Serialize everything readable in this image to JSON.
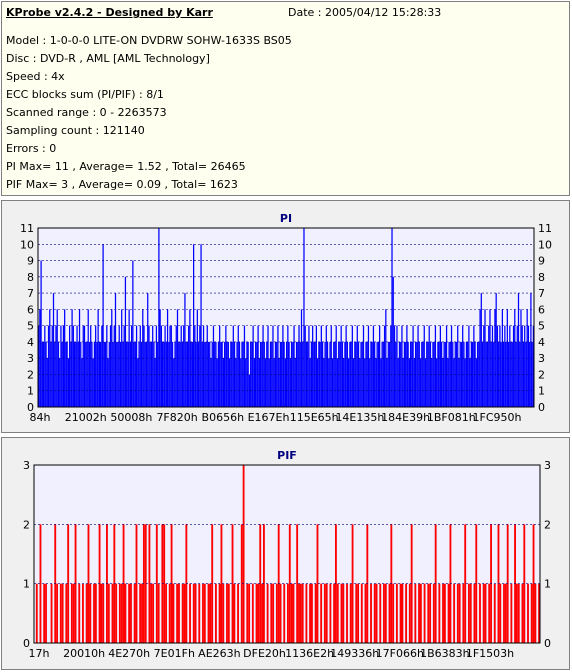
{
  "header": {
    "title": "KProbe v2.4.2 - Designed by Karr",
    "date": "Date : 2005/04/12 15:28:33"
  },
  "info_lines": [
    "Model : 1-0-0-0 LITE-ON DVDRW SOHW-1633S BS05",
    "Disc : DVD-R , AML [AML Technology]",
    "Speed : 4x",
    "ECC blocks sum (PI/PIF) : 8/1",
    "Scanned range : 0 - 2263573",
    "Sampling count : 121140",
    "Errors : 0",
    "PI Max= 11 , Average= 1.52 , Total= 26465",
    "PIF Max= 3 , Average= 0.09 , Total= 1623"
  ],
  "colors": {
    "pi": "#0000ff",
    "pif": "#ff0000",
    "plot_bg": "#f0f0ff",
    "grid": "#000080"
  },
  "chart_data": [
    {
      "type": "bar",
      "title": "PI",
      "ylim": [
        0,
        11
      ],
      "yticks": [
        0,
        1,
        2,
        3,
        4,
        5,
        6,
        7,
        8,
        9,
        10,
        11
      ],
      "x_tick_labels": [
        "84h",
        "21002h",
        "50008h",
        "7F820h",
        "B0656h",
        "E167Eh",
        "115E65h",
        "14E135h",
        "184E39h",
        "1BF081h",
        "1FC950h"
      ],
      "grid": true,
      "series": [
        {
          "values": [
            5,
            6,
            9,
            4,
            4,
            5,
            4,
            3,
            5,
            6,
            4,
            5,
            7,
            4,
            5,
            6,
            4,
            3,
            5,
            4,
            5,
            6,
            4,
            4,
            3,
            5,
            4,
            6,
            5,
            4,
            4,
            5,
            4,
            6,
            4,
            3,
            5,
            5,
            4,
            4,
            6,
            4,
            5,
            4,
            3,
            4,
            5,
            4,
            6,
            4,
            4,
            5,
            10,
            4,
            4,
            5,
            3,
            4,
            5,
            6,
            4,
            5,
            7,
            4,
            4,
            5,
            4,
            6,
            4,
            5,
            8,
            4,
            4,
            6,
            4,
            5,
            9,
            4,
            4,
            5,
            3,
            4,
            5,
            4,
            6,
            5,
            4,
            4,
            7,
            5,
            4,
            4,
            5,
            4,
            3,
            5,
            4,
            11,
            6,
            5,
            4,
            4,
            5,
            4,
            6,
            4,
            5,
            5,
            4,
            3,
            4,
            5,
            6,
            4,
            4,
            5,
            4,
            5,
            7,
            4,
            4,
            5,
            6,
            4,
            4,
            10,
            5,
            4,
            6,
            4,
            5,
            10,
            4,
            5,
            4,
            4,
            5,
            4,
            4,
            3,
            4,
            5,
            4,
            4,
            3,
            4,
            5,
            4,
            4,
            3,
            4,
            5,
            4,
            4,
            3,
            4,
            4,
            5,
            4,
            3,
            4,
            5,
            4,
            3,
            4,
            4,
            5,
            3,
            4,
            4,
            2,
            4,
            4,
            5,
            3,
            4,
            4,
            5,
            3,
            4,
            4,
            5,
            4,
            3,
            4,
            5,
            3,
            4,
            4,
            5,
            3,
            4,
            4,
            5,
            3,
            4,
            4,
            5,
            4,
            3,
            4,
            5,
            4,
            3,
            4,
            4,
            5,
            3,
            4,
            4,
            5,
            4,
            6,
            4,
            11,
            5,
            4,
            4,
            5,
            3,
            4,
            5,
            4,
            4,
            5,
            3,
            4,
            4,
            5,
            4,
            3,
            4,
            5,
            4,
            3,
            4,
            5,
            3,
            4,
            4,
            5,
            3,
            4,
            4,
            5,
            4,
            3,
            4,
            5,
            4,
            3,
            4,
            4,
            5,
            3,
            4,
            4,
            5,
            4,
            3,
            4,
            4,
            5,
            3,
            4,
            4,
            5,
            3,
            4,
            4,
            5,
            4,
            3,
            4,
            4,
            5,
            3,
            4,
            4,
            5,
            6,
            3,
            4,
            4,
            5,
            11,
            8,
            5,
            4,
            5,
            3,
            4,
            4,
            5,
            3,
            4,
            4,
            5,
            4,
            3,
            4,
            4,
            5,
            3,
            4,
            4,
            5,
            4,
            3,
            4,
            4,
            5,
            3,
            4,
            4,
            5,
            4,
            3,
            4,
            4,
            5,
            3,
            4,
            4,
            5,
            4,
            3,
            4,
            4,
            5,
            3,
            4,
            4,
            5,
            4,
            3,
            4,
            4,
            5,
            3,
            4,
            4,
            5,
            4,
            3,
            4,
            4,
            5,
            3,
            4,
            4,
            5,
            4,
            3,
            4,
            4,
            6,
            7,
            4,
            5,
            6,
            4,
            4,
            5,
            6,
            4,
            5,
            4,
            6,
            7,
            5,
            4,
            5,
            4,
            6,
            4,
            5,
            4,
            6,
            4,
            5,
            4,
            4,
            5,
            6,
            4,
            5,
            7,
            4,
            6,
            5,
            4,
            5,
            4,
            6,
            5,
            4,
            7,
            4,
            5
          ]
        }
      ]
    },
    {
      "type": "bar",
      "title": "PIF",
      "ylim": [
        0,
        3
      ],
      "yticks": [
        0,
        1,
        2,
        3
      ],
      "x_tick_labels": [
        "17h",
        "20010h",
        "4E270h",
        "7E01Fh",
        "AE263h",
        "DFE20h",
        "1136E2h",
        "149336h",
        "17F066h",
        "1B6383h",
        "1F1503h"
      ],
      "grid": true,
      "series": [
        {
          "values": [
            0,
            1,
            0,
            2,
            0,
            1,
            1,
            0,
            0,
            1,
            0,
            2,
            1,
            0,
            1,
            1,
            0,
            1,
            2,
            0,
            1,
            1,
            2,
            0,
            1,
            0,
            1,
            0,
            1,
            2,
            1,
            0,
            1,
            1,
            0,
            2,
            1,
            1,
            0,
            2,
            1,
            0,
            1,
            2,
            1,
            0,
            1,
            1,
            2,
            1,
            0,
            1,
            1,
            0,
            1,
            2,
            0,
            1,
            1,
            2,
            2,
            0,
            2,
            1,
            1,
            0,
            2,
            1,
            0,
            2,
            2,
            1,
            0,
            1,
            2,
            1,
            0,
            1,
            1,
            0,
            1,
            1,
            2,
            0,
            1,
            0,
            1,
            1,
            0,
            1,
            0,
            1,
            1,
            0,
            1,
            1,
            2,
            0,
            1,
            0,
            1,
            2,
            1,
            0,
            1,
            1,
            0,
            2,
            1,
            0,
            1,
            0,
            2,
            3,
            0,
            1,
            1,
            0,
            1,
            0,
            1,
            1,
            2,
            1,
            2,
            0,
            1,
            0,
            1,
            1,
            0,
            1,
            2,
            1,
            0,
            1,
            0,
            1,
            2,
            1,
            1,
            0,
            2,
            1,
            1,
            1,
            0,
            1,
            0,
            1,
            1,
            0,
            1,
            2,
            0,
            1,
            0,
            1,
            1,
            0,
            1,
            0,
            1,
            2,
            1,
            0,
            1,
            1,
            0,
            1,
            0,
            1,
            2,
            0,
            1,
            1,
            0,
            1,
            0,
            1,
            2,
            0,
            1,
            0,
            1,
            1,
            0,
            1,
            0,
            1,
            1,
            0,
            1,
            2,
            1,
            0,
            1,
            0,
            1,
            1,
            0,
            1,
            0,
            1,
            2,
            0,
            1,
            0,
            1,
            1,
            0,
            1,
            0,
            1,
            1,
            0,
            1,
            2,
            0,
            1,
            0,
            1,
            1,
            0,
            1,
            2,
            0,
            1,
            0,
            1,
            1,
            0,
            1,
            2,
            0,
            1,
            1,
            0,
            1,
            2,
            0,
            1,
            0,
            1,
            1,
            0,
            1,
            2,
            0,
            1,
            0,
            2,
            1,
            0,
            1,
            1,
            2,
            0,
            1,
            0,
            2,
            1,
            1,
            0,
            1,
            2,
            0,
            1,
            0,
            1,
            2,
            1,
            0,
            1
          ]
        }
      ]
    }
  ]
}
